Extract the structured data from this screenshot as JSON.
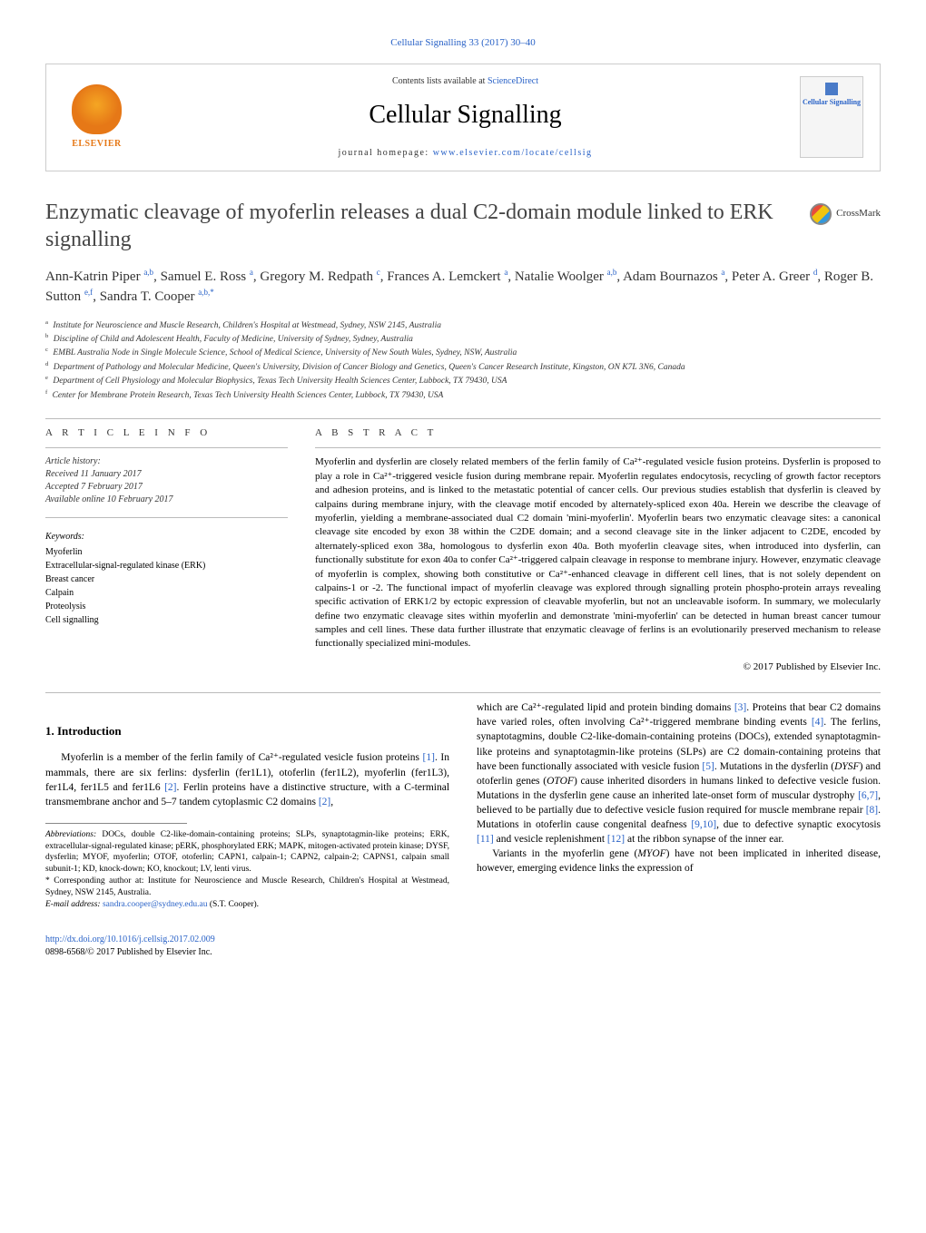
{
  "topLink": "Cellular Signalling 33 (2017) 30–40",
  "header": {
    "contentsPrefix": "Contents lists available at ",
    "contentsLink": "ScienceDirect",
    "journalName": "Cellular Signalling",
    "homepagePrefix": "journal homepage: ",
    "homepageUrl": "www.elsevier.com/locate/cellsig",
    "elsevierLabel": "ELSEVIER",
    "coverTitle": "Cellular Signalling"
  },
  "crossmark": "CrossMark",
  "title": "Enzymatic cleavage of myoferlin releases a dual C2-domain module linked to ERK signalling",
  "authors": "Ann-Katrin Piper <sup>a,b</sup>, Samuel E. Ross <sup>a</sup>, Gregory M. Redpath <sup>c</sup>, Frances A. Lemckert <sup>a</sup>, Natalie Woolger <sup>a,b</sup>, Adam Bournazos <sup>a</sup>, Peter A. Greer <sup>d</sup>, Roger B. Sutton <sup>e,f</sup>, Sandra T. Cooper <sup>a,b,*</sup>",
  "affiliations": [
    {
      "sup": "a",
      "text": "Institute for Neuroscience and Muscle Research, Children's Hospital at Westmead, Sydney, NSW 2145, Australia"
    },
    {
      "sup": "b",
      "text": "Discipline of Child and Adolescent Health, Faculty of Medicine, University of Sydney, Sydney, Australia"
    },
    {
      "sup": "c",
      "text": "EMBL Australia Node in Single Molecule Science, School of Medical Science, University of New South Wales, Sydney, NSW, Australia"
    },
    {
      "sup": "d",
      "text": "Department of Pathology and Molecular Medicine, Queen's University, Division of Cancer Biology and Genetics, Queen's Cancer Research Institute, Kingston, ON K7L 3N6, Canada"
    },
    {
      "sup": "e",
      "text": "Department of Cell Physiology and Molecular Biophysics, Texas Tech University Health Sciences Center, Lubbock, TX 79430, USA"
    },
    {
      "sup": "f",
      "text": "Center for Membrane Protein Research, Texas Tech University Health Sciences Center, Lubbock, TX 79430, USA"
    }
  ],
  "articleInfo": {
    "head": "A R T I C L E   I N F O",
    "historyLabel": "Article history:",
    "received": "Received 11 January 2017",
    "accepted": "Accepted 7 February 2017",
    "online": "Available online 10 February 2017",
    "keywordsLabel": "Keywords:",
    "keywords": [
      "Myoferlin",
      "Extracellular-signal-regulated kinase (ERK)",
      "Breast cancer",
      "Calpain",
      "Proteolysis",
      "Cell signalling"
    ]
  },
  "abstract": {
    "head": "A B S T R A C T",
    "text": "Myoferlin and dysferlin are closely related members of the ferlin family of Ca²⁺-regulated vesicle fusion proteins. Dysferlin is proposed to play a role in Ca²⁺-triggered vesicle fusion during membrane repair. Myoferlin regulates endocytosis, recycling of growth factor receptors and adhesion proteins, and is linked to the metastatic potential of cancer cells. Our previous studies establish that dysferlin is cleaved by calpains during membrane injury, with the cleavage motif encoded by alternately-spliced exon 40a. Herein we describe the cleavage of myoferlin, yielding a membrane-associated dual C2 domain 'mini-myoferlin'. Myoferlin bears two enzymatic cleavage sites: a canonical cleavage site encoded by exon 38 within the C2DE domain; and a second cleavage site in the linker adjacent to C2DE, encoded by alternately-spliced exon 38a, homologous to dysferlin exon 40a. Both myoferlin cleavage sites, when introduced into dysferlin, can functionally substitute for exon 40a to confer Ca²⁺-triggered calpain cleavage in response to membrane injury. However, enzymatic cleavage of myoferlin is complex, showing both constitutive or Ca²⁺-enhanced cleavage in different cell lines, that is not solely dependent on calpains-1 or -2. The functional impact of myoferlin cleavage was explored through signalling protein phospho-protein arrays revealing specific activation of ERK1/2 by ectopic expression of cleavable myoferlin, but not an uncleavable isoform. In summary, we molecularly define two enzymatic cleavage sites within myoferlin and demonstrate 'mini-myoferlin' can be detected in human breast cancer tumour samples and cell lines. These data further illustrate that enzymatic cleavage of ferlins is an evolutionarily preserved mechanism to release functionally specialized mini-modules.",
    "copyright": "© 2017 Published by Elsevier Inc."
  },
  "intro": {
    "heading": "1. Introduction",
    "leftParas": [
      "Myoferlin is a member of the ferlin family of Ca²⁺-regulated vesicle fusion proteins [1]. In mammals, there are six ferlins: dysferlin (fer1L1), otoferlin (fer1L2), myoferlin (fer1L3), fer1L4, fer1L5 and fer1L6 [2]. Ferlin proteins have a distinctive structure, with a C-terminal transmembrane anchor and 5–7 tandem cytoplasmic C2 domains [2],"
    ],
    "rightParas": [
      "which are Ca²⁺-regulated lipid and protein binding domains [3]. Proteins that bear C2 domains have varied roles, often involving Ca²⁺-triggered membrane binding events [4]. The ferlins, synaptotagmins, double C2-like-domain-containing proteins (DOCs), extended synaptotagmin-like proteins and synaptotagmin-like proteins (SLPs) are C2 domain-containing proteins that have been functionally associated with vesicle fusion [5]. Mutations in the dysferlin (DYSF) and otoferlin genes (OTOF) cause inherited disorders in humans linked to defective vesicle fusion. Mutations in the dysferlin gene cause an inherited late-onset form of muscular dystrophy [6,7], believed to be partially due to defective vesicle fusion required for muscle membrane repair [8]. Mutations in otoferlin cause congenital deafness [9,10], due to defective synaptic exocytosis [11] and vesicle replenishment [12] at the ribbon synapse of the inner ear.",
      "Variants in the myoferlin gene (MYOF) have not been implicated in inherited disease, however, emerging evidence links the expression of"
    ]
  },
  "footnotes": {
    "abbrevLabel": "Abbreviations:",
    "abbrev": " DOCs, double C2-like-domain-containing proteins; SLPs, synaptotagmin-like proteins; ERK, extracellular-signal-regulated kinase; pERK, phosphorylated ERK; MAPK, mitogen-activated protein kinase; DYSF, dysferlin; MYOF, myoferlin; OTOF, otoferlin; CAPN1, calpain-1; CAPN2, calpain-2; CAPNS1, calpain small subunit-1; KD, knock-down; KO, knockout; LV, lenti virus.",
    "corresponding": "* Corresponding author at: Institute for Neuroscience and Muscle Research, Children's Hospital at Westmead, Sydney, NSW 2145, Australia.",
    "emailLabel": "E-mail address: ",
    "email": "sandra.cooper@sydney.edu.au",
    "emailSuffix": " (S.T. Cooper)."
  },
  "bottom": {
    "doi": "http://dx.doi.org/10.1016/j.cellsig.2017.02.009",
    "issn": "0898-6568/© 2017 Published by Elsevier Inc."
  }
}
